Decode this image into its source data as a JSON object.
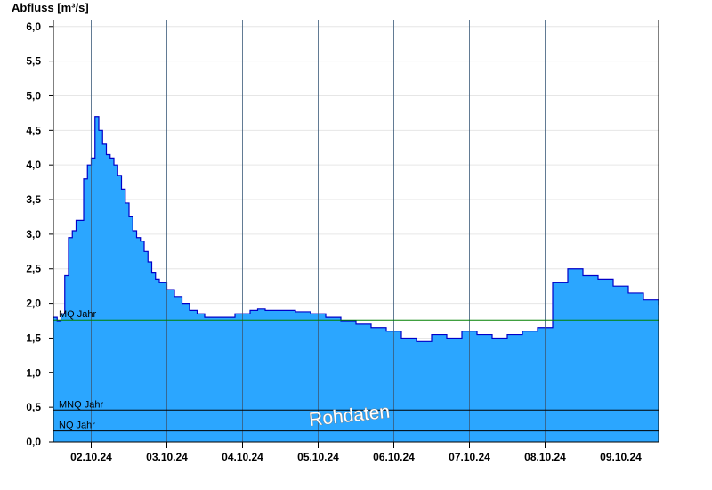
{
  "chart_data": {
    "type": "area",
    "ylabel": "Abfluss [m³/s]",
    "ylim": [
      0,
      6.1
    ],
    "y_ticks": [
      "0,0",
      "0,5",
      "1,0",
      "1,5",
      "2,0",
      "2,5",
      "3,0",
      "3,5",
      "4,0",
      "4,5",
      "5,0",
      "5,5",
      "6,0"
    ],
    "x_start": "01.10.24 12:00",
    "x_days": 8,
    "x_tick_labels": [
      "02.10.24",
      "03.10.24",
      "04.10.24",
      "05.10.24",
      "06.10.24",
      "07.10.24",
      "08.10.24",
      "09.10.24"
    ],
    "grid": true,
    "fill_color": "#2ba6ff",
    "line_color": "#0000c8",
    "series": [
      {
        "x": [
          0,
          0.05,
          0.1,
          0.15,
          0.2,
          0.25,
          0.3,
          0.35,
          0.4,
          0.45,
          0.5,
          0.55,
          0.6,
          0.65,
          0.7,
          0.75,
          0.8,
          0.85,
          0.9,
          0.95,
          1.0,
          1.05,
          1.1,
          1.15,
          1.2,
          1.25,
          1.3,
          1.35,
          1.4,
          1.5,
          1.6,
          1.7,
          1.8,
          1.9,
          2.0,
          2.2,
          2.4,
          2.6,
          2.7,
          2.8,
          3.0,
          3.2,
          3.4,
          3.6,
          3.8,
          4.0,
          4.2,
          4.4,
          4.6,
          4.8,
          5.0,
          5.2,
          5.4,
          5.6,
          5.8,
          6.0,
          6.2,
          6.4,
          6.6,
          6.8,
          7.0,
          7.2,
          7.4,
          7.6,
          7.8,
          8.0
        ],
        "y": [
          1.8,
          1.75,
          1.85,
          2.4,
          2.95,
          3.05,
          3.2,
          3.2,
          3.8,
          4.0,
          4.1,
          4.7,
          4.5,
          4.3,
          4.15,
          4.1,
          4.0,
          3.85,
          3.65,
          3.45,
          3.25,
          3.05,
          2.95,
          2.9,
          2.75,
          2.6,
          2.45,
          2.35,
          2.3,
          2.2,
          2.1,
          2.0,
          1.9,
          1.85,
          1.8,
          1.8,
          1.85,
          1.9,
          1.92,
          1.9,
          1.9,
          1.88,
          1.85,
          1.8,
          1.75,
          1.7,
          1.65,
          1.6,
          1.5,
          1.45,
          1.55,
          1.5,
          1.6,
          1.55,
          1.5,
          1.55,
          1.6,
          1.65,
          2.3,
          2.5,
          2.4,
          2.35,
          2.25,
          2.15,
          2.05,
          1.98
        ]
      }
    ],
    "reference_lines": [
      {
        "label": "MQ Jahr",
        "value": 1.76,
        "color": "#008000"
      },
      {
        "label": "MNQ Jahr",
        "value": 0.46,
        "color": "#000000"
      },
      {
        "label": "NQ Jahr",
        "value": 0.16,
        "color": "#000000"
      }
    ],
    "annotation": "Rohdaten"
  }
}
